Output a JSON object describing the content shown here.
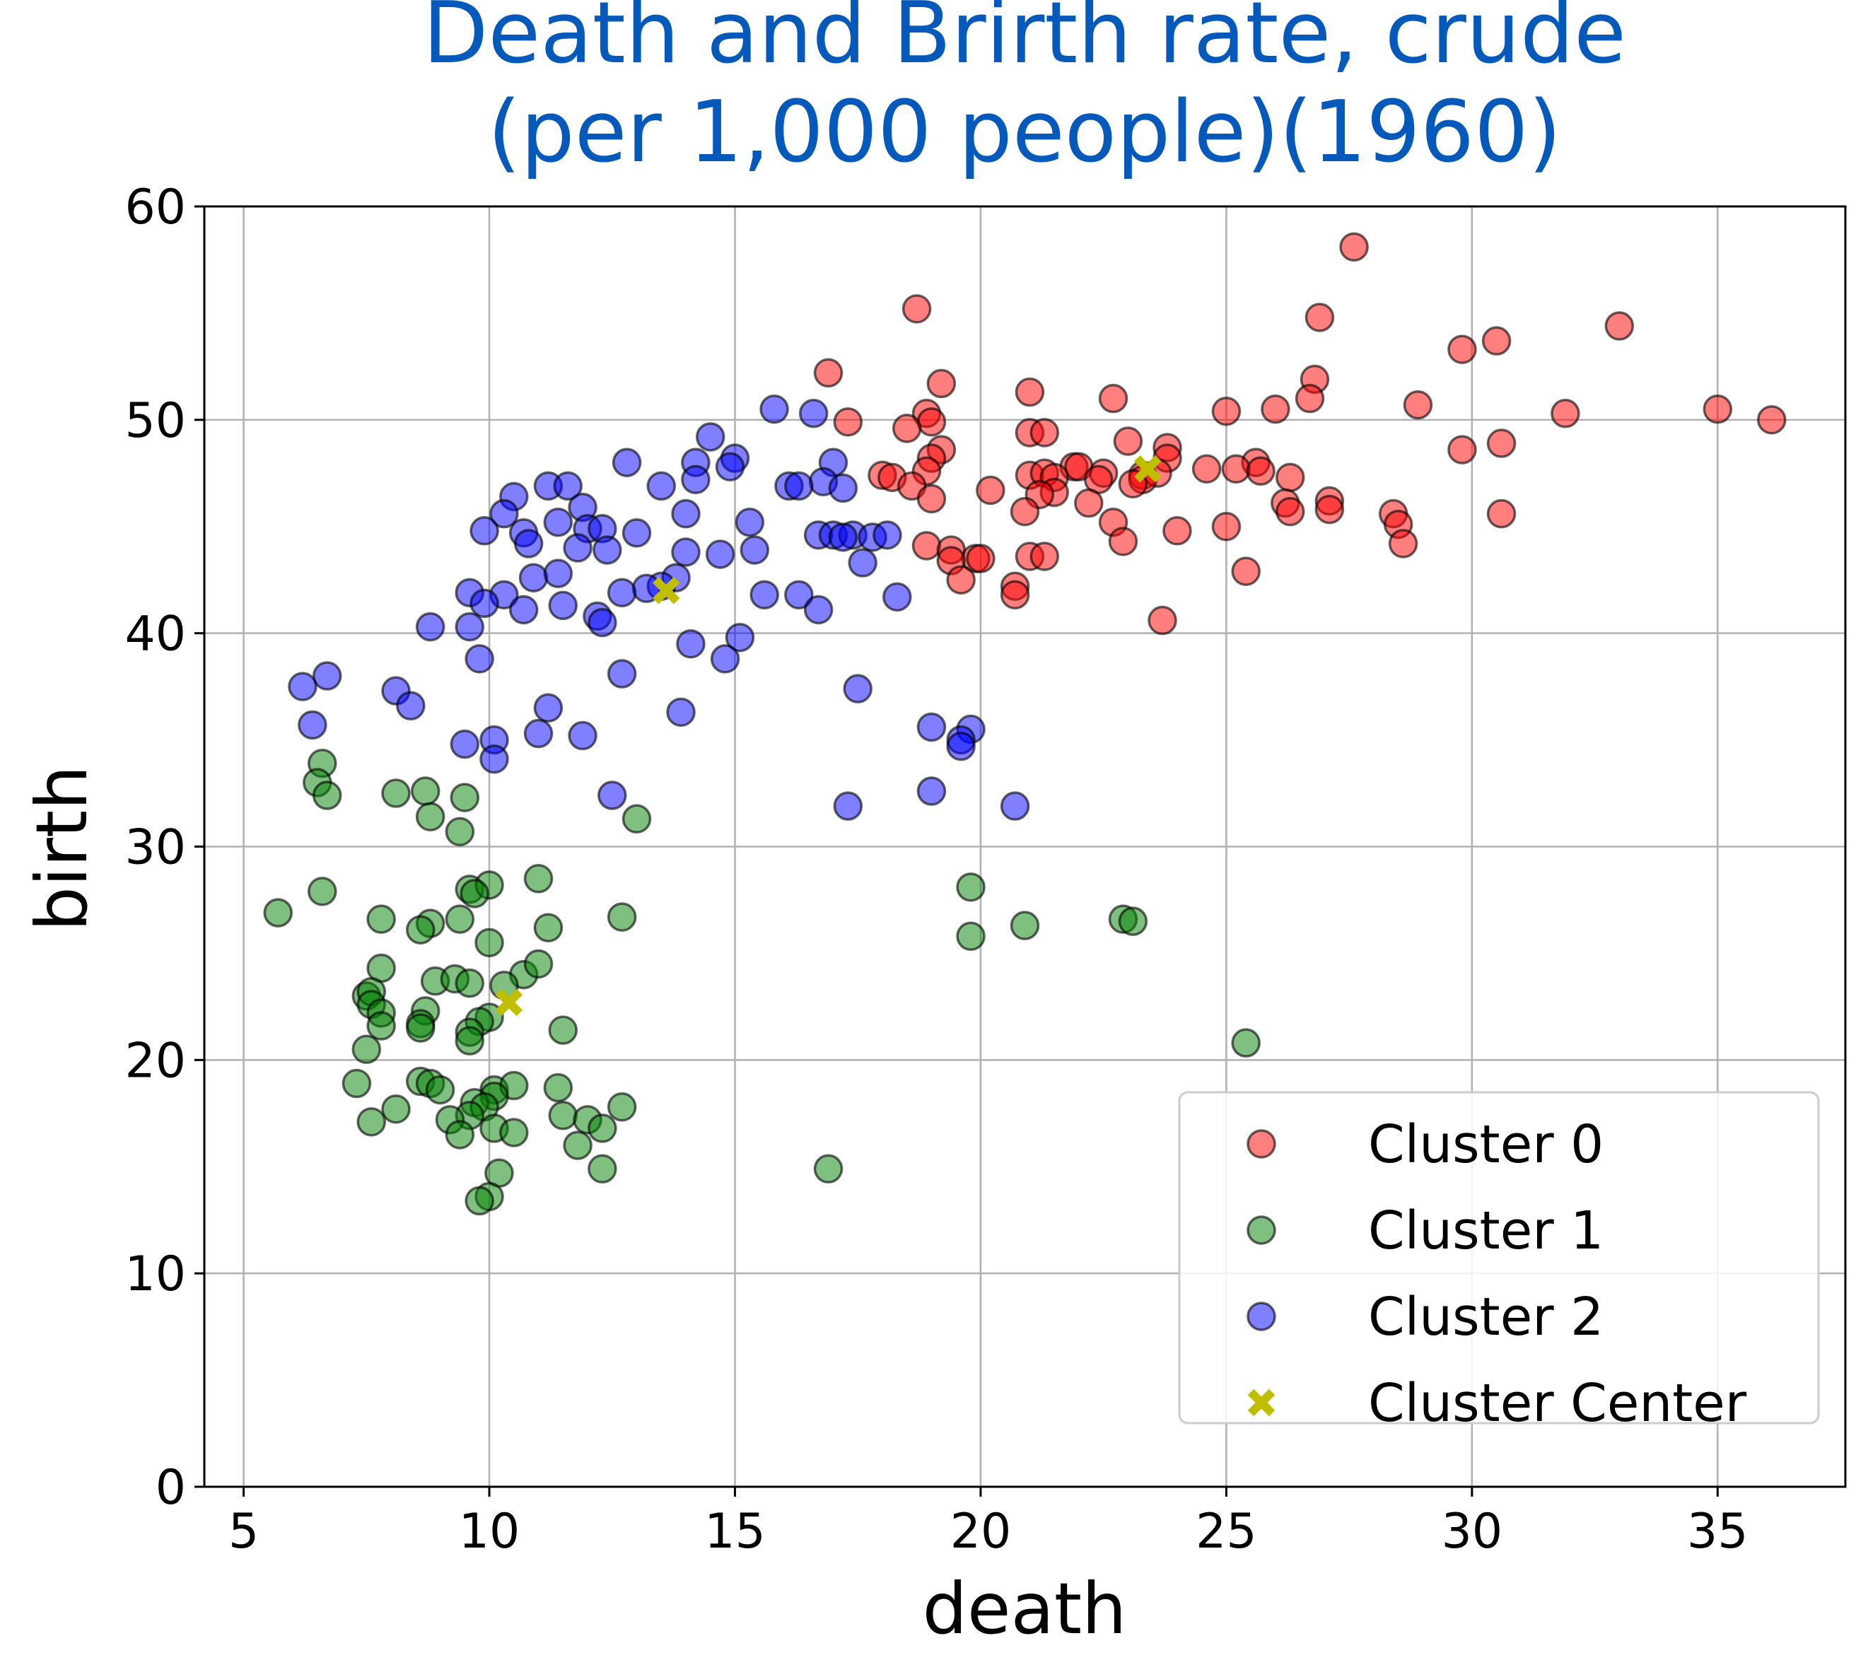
{
  "chart_data": {
    "type": "scatter",
    "title": [
      "Death and Brirth rate, crude",
      "(per 1,000 people)(1960)"
    ],
    "xlabel": "death",
    "ylabel": "birth",
    "xlim": [
      4.2,
      37.6
    ],
    "ylim": [
      0,
      60
    ],
    "xticks": [
      5,
      10,
      15,
      20,
      25,
      30,
      35
    ],
    "yticks": [
      0,
      10,
      20,
      30,
      40,
      50,
      60
    ],
    "grid": true,
    "legend_position": "lower-right",
    "series": [
      {
        "name": "Cluster 0",
        "color": "#ff0000",
        "opacity": 0.5,
        "marker": "circle",
        "points": [
          [
            27.6,
            58.1
          ],
          [
            18.7,
            55.2
          ],
          [
            26.9,
            54.8
          ],
          [
            33.0,
            54.4
          ],
          [
            30.5,
            53.7
          ],
          [
            29.8,
            53.3
          ],
          [
            16.9,
            52.2
          ],
          [
            26.8,
            51.9
          ],
          [
            19.2,
            51.7
          ],
          [
            21.0,
            51.3
          ],
          [
            22.7,
            51.0
          ],
          [
            26.7,
            51.0
          ],
          [
            28.9,
            50.7
          ],
          [
            35.0,
            50.5
          ],
          [
            25.0,
            50.4
          ],
          [
            26.0,
            50.5
          ],
          [
            31.9,
            50.3
          ],
          [
            18.9,
            50.3
          ],
          [
            36.1,
            50.0
          ],
          [
            17.3,
            49.9
          ],
          [
            19.0,
            49.9
          ],
          [
            18.5,
            49.6
          ],
          [
            21.0,
            49.4
          ],
          [
            21.3,
            49.4
          ],
          [
            23.0,
            49.0
          ],
          [
            30.6,
            48.9
          ],
          [
            23.8,
            48.7
          ],
          [
            19.2,
            48.6
          ],
          [
            29.8,
            48.6
          ],
          [
            19.0,
            48.2
          ],
          [
            23.8,
            48.2
          ],
          [
            25.6,
            48.0
          ],
          [
            21.9,
            47.8
          ],
          [
            22.0,
            47.8
          ],
          [
            24.6,
            47.7
          ],
          [
            25.2,
            47.7
          ],
          [
            18.9,
            47.6
          ],
          [
            25.7,
            47.6
          ],
          [
            18.0,
            47.4
          ],
          [
            21.0,
            47.4
          ],
          [
            21.3,
            47.5
          ],
          [
            22.5,
            47.5
          ],
          [
            23.3,
            47.4
          ],
          [
            23.6,
            47.5
          ],
          [
            18.2,
            47.3
          ],
          [
            21.5,
            47.3
          ],
          [
            22.4,
            47.2
          ],
          [
            23.3,
            47.2
          ],
          [
            26.3,
            47.3
          ],
          [
            23.1,
            47.0
          ],
          [
            18.6,
            46.9
          ],
          [
            21.5,
            46.6
          ],
          [
            20.2,
            46.7
          ],
          [
            21.2,
            46.5
          ],
          [
            19.0,
            46.3
          ],
          [
            27.1,
            46.2
          ],
          [
            22.2,
            46.1
          ],
          [
            26.2,
            46.1
          ],
          [
            20.9,
            45.7
          ],
          [
            26.3,
            45.7
          ],
          [
            27.1,
            45.8
          ],
          [
            30.6,
            45.6
          ],
          [
            28.4,
            45.6
          ],
          [
            22.7,
            45.2
          ],
          [
            28.5,
            45.1
          ],
          [
            25.0,
            45.0
          ],
          [
            24.0,
            44.8
          ],
          [
            22.9,
            44.3
          ],
          [
            28.6,
            44.2
          ],
          [
            18.9,
            44.1
          ],
          [
            19.4,
            43.9
          ],
          [
            21.0,
            43.6
          ],
          [
            21.3,
            43.6
          ],
          [
            19.9,
            43.5
          ],
          [
            20.0,
            43.5
          ],
          [
            19.4,
            43.4
          ],
          [
            25.4,
            42.9
          ],
          [
            19.6,
            42.5
          ],
          [
            20.7,
            42.2
          ],
          [
            20.7,
            41.8
          ],
          [
            23.7,
            40.6
          ]
        ]
      },
      {
        "name": "Cluster 1",
        "color": "#008000",
        "opacity": 0.5,
        "marker": "circle",
        "points": [
          [
            6.6,
            33.9
          ],
          [
            6.5,
            33.0
          ],
          [
            6.7,
            32.4
          ],
          [
            8.1,
            32.5
          ],
          [
            8.7,
            32.6
          ],
          [
            9.5,
            32.3
          ],
          [
            8.8,
            31.4
          ],
          [
            9.4,
            30.7
          ],
          [
            13.0,
            31.3
          ],
          [
            11.0,
            28.5
          ],
          [
            6.6,
            27.9
          ],
          [
            9.6,
            28.0
          ],
          [
            10.0,
            28.2
          ],
          [
            19.8,
            28.1
          ],
          [
            9.7,
            27.8
          ],
          [
            5.7,
            26.9
          ],
          [
            7.8,
            26.6
          ],
          [
            8.8,
            26.4
          ],
          [
            9.4,
            26.6
          ],
          [
            12.7,
            26.7
          ],
          [
            22.9,
            26.6
          ],
          [
            23.1,
            26.5
          ],
          [
            8.6,
            26.1
          ],
          [
            11.2,
            26.2
          ],
          [
            20.9,
            26.3
          ],
          [
            10.0,
            25.5
          ],
          [
            19.8,
            25.8
          ],
          [
            7.8,
            24.3
          ],
          [
            10.7,
            24.0
          ],
          [
            11.0,
            24.5
          ],
          [
            8.9,
            23.7
          ],
          [
            9.3,
            23.8
          ],
          [
            9.6,
            23.6
          ],
          [
            10.3,
            23.5
          ],
          [
            7.5,
            23.0
          ],
          [
            7.6,
            23.2
          ],
          [
            7.6,
            22.6
          ],
          [
            7.8,
            22.2
          ],
          [
            8.7,
            22.3
          ],
          [
            10.0,
            22.0
          ],
          [
            8.6,
            21.7
          ],
          [
            9.8,
            21.8
          ],
          [
            7.8,
            21.6
          ],
          [
            8.6,
            21.5
          ],
          [
            11.5,
            21.4
          ],
          [
            9.6,
            21.3
          ],
          [
            9.6,
            20.9
          ],
          [
            25.4,
            20.8
          ],
          [
            7.5,
            20.5
          ],
          [
            7.3,
            18.9
          ],
          [
            8.6,
            19.0
          ],
          [
            8.8,
            18.9
          ],
          [
            9.0,
            18.6
          ],
          [
            10.1,
            18.6
          ],
          [
            10.5,
            18.8
          ],
          [
            11.4,
            18.7
          ],
          [
            10.1,
            18.3
          ],
          [
            9.7,
            18.0
          ],
          [
            12.7,
            17.8
          ],
          [
            8.1,
            17.7
          ],
          [
            9.9,
            17.8
          ],
          [
            9.6,
            17.4
          ],
          [
            9.2,
            17.2
          ],
          [
            11.5,
            17.4
          ],
          [
            12.0,
            17.2
          ],
          [
            7.6,
            17.1
          ],
          [
            10.1,
            16.8
          ],
          [
            10.5,
            16.6
          ],
          [
            12.3,
            16.8
          ],
          [
            9.4,
            16.5
          ],
          [
            11.8,
            16.0
          ],
          [
            12.3,
            14.9
          ],
          [
            16.9,
            14.9
          ],
          [
            10.2,
            14.7
          ],
          [
            10.0,
            13.6
          ],
          [
            9.8,
            13.4
          ]
        ]
      },
      {
        "name": "Cluster 2",
        "color": "#0000ff",
        "opacity": 0.5,
        "marker": "circle",
        "points": [
          [
            15.8,
            50.5
          ],
          [
            16.6,
            50.3
          ],
          [
            14.5,
            49.2
          ],
          [
            15.0,
            48.2
          ],
          [
            14.9,
            47.8
          ],
          [
            14.2,
            48.0
          ],
          [
            12.8,
            48.0
          ],
          [
            17.0,
            48.0
          ],
          [
            14.2,
            47.2
          ],
          [
            16.8,
            47.1
          ],
          [
            13.5,
            46.9
          ],
          [
            11.2,
            46.9
          ],
          [
            11.6,
            46.9
          ],
          [
            16.1,
            46.9
          ],
          [
            16.3,
            46.9
          ],
          [
            17.2,
            46.8
          ],
          [
            10.5,
            46.4
          ],
          [
            11.9,
            45.9
          ],
          [
            10.3,
            45.6
          ],
          [
            14.0,
            45.6
          ],
          [
            11.4,
            45.2
          ],
          [
            15.3,
            45.2
          ],
          [
            9.9,
            44.8
          ],
          [
            10.7,
            44.7
          ],
          [
            12.0,
            44.9
          ],
          [
            12.3,
            44.9
          ],
          [
            13.0,
            44.7
          ],
          [
            16.7,
            44.6
          ],
          [
            17.0,
            44.6
          ],
          [
            17.4,
            44.6
          ],
          [
            17.8,
            44.5
          ],
          [
            18.1,
            44.6
          ],
          [
            17.2,
            44.5
          ],
          [
            10.8,
            44.2
          ],
          [
            11.8,
            44.0
          ],
          [
            12.4,
            43.9
          ],
          [
            14.0,
            43.8
          ],
          [
            14.7,
            43.7
          ],
          [
            15.4,
            43.9
          ],
          [
            17.6,
            43.3
          ],
          [
            10.9,
            42.6
          ],
          [
            11.4,
            42.8
          ],
          [
            13.8,
            42.6
          ],
          [
            13.5,
            42.2
          ],
          [
            13.2,
            42.1
          ],
          [
            9.6,
            41.9
          ],
          [
            10.3,
            41.8
          ],
          [
            12.7,
            41.9
          ],
          [
            15.6,
            41.8
          ],
          [
            16.3,
            41.8
          ],
          [
            18.3,
            41.7
          ],
          [
            9.9,
            41.4
          ],
          [
            10.7,
            41.1
          ],
          [
            11.5,
            41.3
          ],
          [
            16.7,
            41.1
          ],
          [
            12.2,
            40.8
          ],
          [
            12.3,
            40.5
          ],
          [
            8.8,
            40.3
          ],
          [
            9.6,
            40.3
          ],
          [
            15.1,
            39.8
          ],
          [
            14.1,
            39.5
          ],
          [
            14.8,
            38.8
          ],
          [
            9.8,
            38.8
          ],
          [
            12.7,
            38.1
          ],
          [
            6.7,
            38.0
          ],
          [
            6.2,
            37.5
          ],
          [
            17.5,
            37.4
          ],
          [
            8.1,
            37.3
          ],
          [
            8.4,
            36.6
          ],
          [
            11.2,
            36.5
          ],
          [
            13.9,
            36.3
          ],
          [
            6.4,
            35.7
          ],
          [
            19.0,
            35.6
          ],
          [
            19.8,
            35.5
          ],
          [
            11.0,
            35.3
          ],
          [
            11.9,
            35.2
          ],
          [
            19.6,
            35.0
          ],
          [
            19.6,
            34.7
          ],
          [
            9.5,
            34.8
          ],
          [
            10.1,
            35.0
          ],
          [
            10.1,
            34.1
          ],
          [
            12.5,
            32.4
          ],
          [
            19.0,
            32.6
          ],
          [
            17.3,
            31.9
          ],
          [
            20.7,
            31.9
          ]
        ]
      },
      {
        "name": "Cluster Center",
        "color": "#bfbf00",
        "opacity": 1,
        "marker": "x",
        "points": [
          [
            23.4,
            47.7
          ],
          [
            10.4,
            22.7
          ],
          [
            13.6,
            42.0
          ]
        ]
      }
    ]
  }
}
